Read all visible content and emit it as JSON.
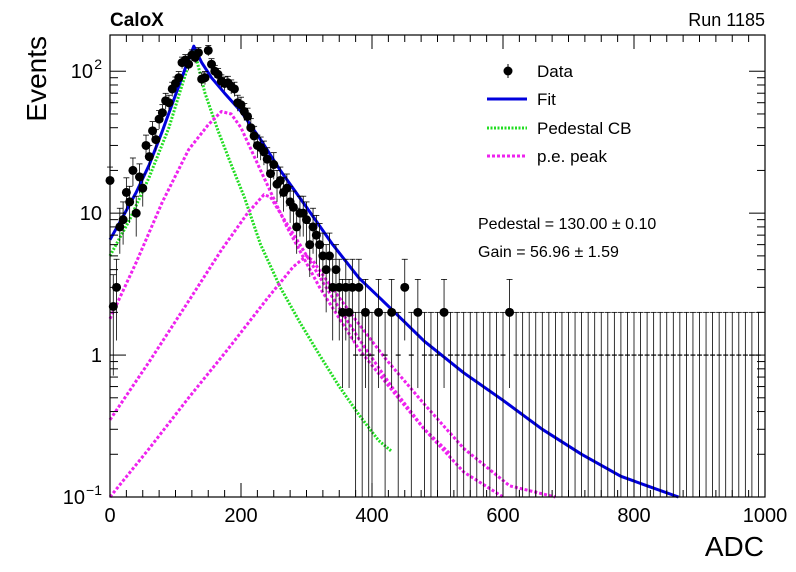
{
  "header": {
    "experiment": "CaloX",
    "run": "Run 1185"
  },
  "chart_data": {
    "type": "scatter",
    "xlabel": "ADC",
    "ylabel": "Events",
    "xlim": [
      0,
      1000
    ],
    "ylim": [
      0.1,
      180
    ],
    "yscale": "log",
    "x_ticks": [
      0,
      200,
      400,
      600,
      800,
      1000
    ],
    "y_tick_labels": [
      {
        "value": 0.1,
        "base": "10",
        "exp": "−1"
      },
      {
        "value": 1,
        "base": "1",
        "exp": ""
      },
      {
        "value": 10,
        "base": "10",
        "exp": ""
      },
      {
        "value": 100,
        "base": "10",
        "exp": "2"
      }
    ],
    "legend": {
      "position": "top-right",
      "entries": [
        {
          "label": "Data",
          "style": "marker",
          "color": "#000000"
        },
        {
          "label": "Fit",
          "style": "solid",
          "color": "#0000dd"
        },
        {
          "label": "Pedestal CB",
          "style": "dotted",
          "color": "#22dd22"
        },
        {
          "label": "p.e. peak",
          "style": "dotted",
          "color": "#ee22ee"
        }
      ]
    },
    "annotations": {
      "pedestal": "Pedestal = 130.00 ± 0.10",
      "gain": "Gain = 56.96 ± 1.59"
    },
    "colors": {
      "data": "#000000",
      "fit": "#0000dd",
      "pedestal": "#22dd22",
      "pe": "#ee22ee"
    },
    "fit": {
      "x": [
        0,
        20,
        40,
        60,
        80,
        100,
        115,
        128,
        140,
        155,
        175,
        200,
        230,
        260,
        300,
        340,
        380,
        430,
        480,
        540,
        600,
        660,
        720,
        780,
        820,
        868
      ],
      "y": [
        6.5,
        9.5,
        14,
        22,
        38,
        68,
        105,
        150,
        115,
        90,
        70,
        52,
        33,
        20,
        11,
        6,
        3.5,
        2.1,
        1.25,
        0.75,
        0.48,
        0.3,
        0.2,
        0.14,
        0.12,
        0.1
      ]
    },
    "pedestal_cb": {
      "x": [
        0,
        30,
        60,
        90,
        110,
        128,
        145,
        165,
        185,
        205,
        230,
        260,
        290,
        320,
        350,
        380,
        410,
        430
      ],
      "y": [
        5,
        9,
        18,
        40,
        80,
        145,
        70,
        38,
        22,
        13,
        6,
        3,
        1.7,
        1.0,
        0.6,
        0.38,
        0.25,
        0.21
      ]
    },
    "pe_peaks": [
      {
        "x": [
          0,
          40,
          80,
          120,
          150,
          170,
          185,
          200,
          230,
          270,
          320,
          380,
          440,
          480,
          520
        ],
        "y": [
          1.8,
          4.5,
          12,
          28,
          42,
          52,
          50,
          40,
          20,
          8,
          3,
          1.1,
          0.5,
          0.3,
          0.2
        ]
      },
      {
        "x": [
          0,
          60,
          120,
          170,
          210,
          235,
          245,
          260,
          290,
          330,
          380,
          430,
          480,
          540,
          600
        ],
        "y": [
          0.35,
          0.9,
          2.4,
          5.5,
          10,
          13.5,
          13,
          10,
          6,
          3,
          1.3,
          0.6,
          0.3,
          0.15,
          0.1
        ]
      },
      {
        "x": [
          0,
          60,
          120,
          180,
          240,
          280,
          300,
          310,
          330,
          370,
          420,
          480,
          540,
          610,
          680
        ],
        "y": [
          0.1,
          0.22,
          0.5,
          1.1,
          2.5,
          4.2,
          5,
          4.6,
          3.4,
          1.9,
          0.95,
          0.45,
          0.22,
          0.12,
          0.1
        ]
      }
    ],
    "data_points": {
      "x": [
        0,
        5,
        10,
        15,
        20,
        25,
        30,
        35,
        40,
        45,
        50,
        55,
        60,
        65,
        70,
        75,
        80,
        85,
        90,
        95,
        100,
        105,
        110,
        115,
        120,
        125,
        130,
        135,
        140,
        145,
        150,
        155,
        160,
        165,
        170,
        175,
        180,
        185,
        190,
        195,
        200,
        205,
        210,
        215,
        220,
        225,
        230,
        235,
        240,
        245,
        250,
        255,
        260,
        265,
        270,
        275,
        280,
        285,
        290,
        295,
        300,
        305,
        310,
        315,
        320,
        325,
        330,
        335,
        340,
        345,
        350,
        355,
        360,
        365,
        370,
        375,
        380,
        385,
        390,
        395,
        400,
        410,
        420,
        430,
        440,
        450,
        460,
        470,
        480,
        490,
        500,
        510,
        520,
        530,
        540,
        550,
        560,
        570,
        580,
        590,
        600,
        610,
        620,
        630,
        640,
        650,
        660,
        670,
        680,
        690,
        700,
        710,
        720,
        730,
        740,
        750,
        760,
        770,
        780,
        790,
        800,
        810,
        820,
        830,
        840,
        850,
        860,
        870,
        880,
        890,
        900,
        910,
        920,
        930,
        940,
        950,
        960,
        970,
        980,
        990
      ],
      "y": [
        17,
        2.2,
        3,
        8,
        9,
        14,
        12,
        20,
        10,
        18,
        15,
        30,
        25,
        38,
        33,
        46,
        51,
        62,
        60,
        75,
        82,
        90,
        115,
        120,
        112,
        130,
        125,
        135,
        88,
        90,
        140,
        112,
        100,
        95,
        85,
        82,
        83,
        78,
        75,
        60,
        58,
        52,
        48,
        40,
        35,
        30,
        29,
        27,
        24,
        19,
        22,
        16,
        17,
        14,
        15,
        12,
        11,
        8,
        10,
        10,
        9,
        6,
        8,
        7,
        6,
        5,
        4,
        5,
        3,
        4,
        3,
        2,
        3,
        2,
        3,
        1,
        3,
        1,
        2,
        1,
        1,
        2,
        1,
        2,
        1,
        3,
        1,
        2,
        1,
        1,
        1,
        2,
        1,
        1,
        1,
        1,
        1,
        1,
        1,
        1,
        1,
        2,
        1,
        1,
        1,
        1,
        1,
        1,
        1,
        1,
        1,
        1,
        1,
        1,
        1,
        1,
        1,
        1,
        1,
        1,
        1,
        1,
        1,
        1,
        1,
        1,
        1,
        1,
        1,
        1,
        1,
        1,
        1,
        1,
        1,
        1,
        1,
        1,
        1,
        1
      ]
    }
  }
}
